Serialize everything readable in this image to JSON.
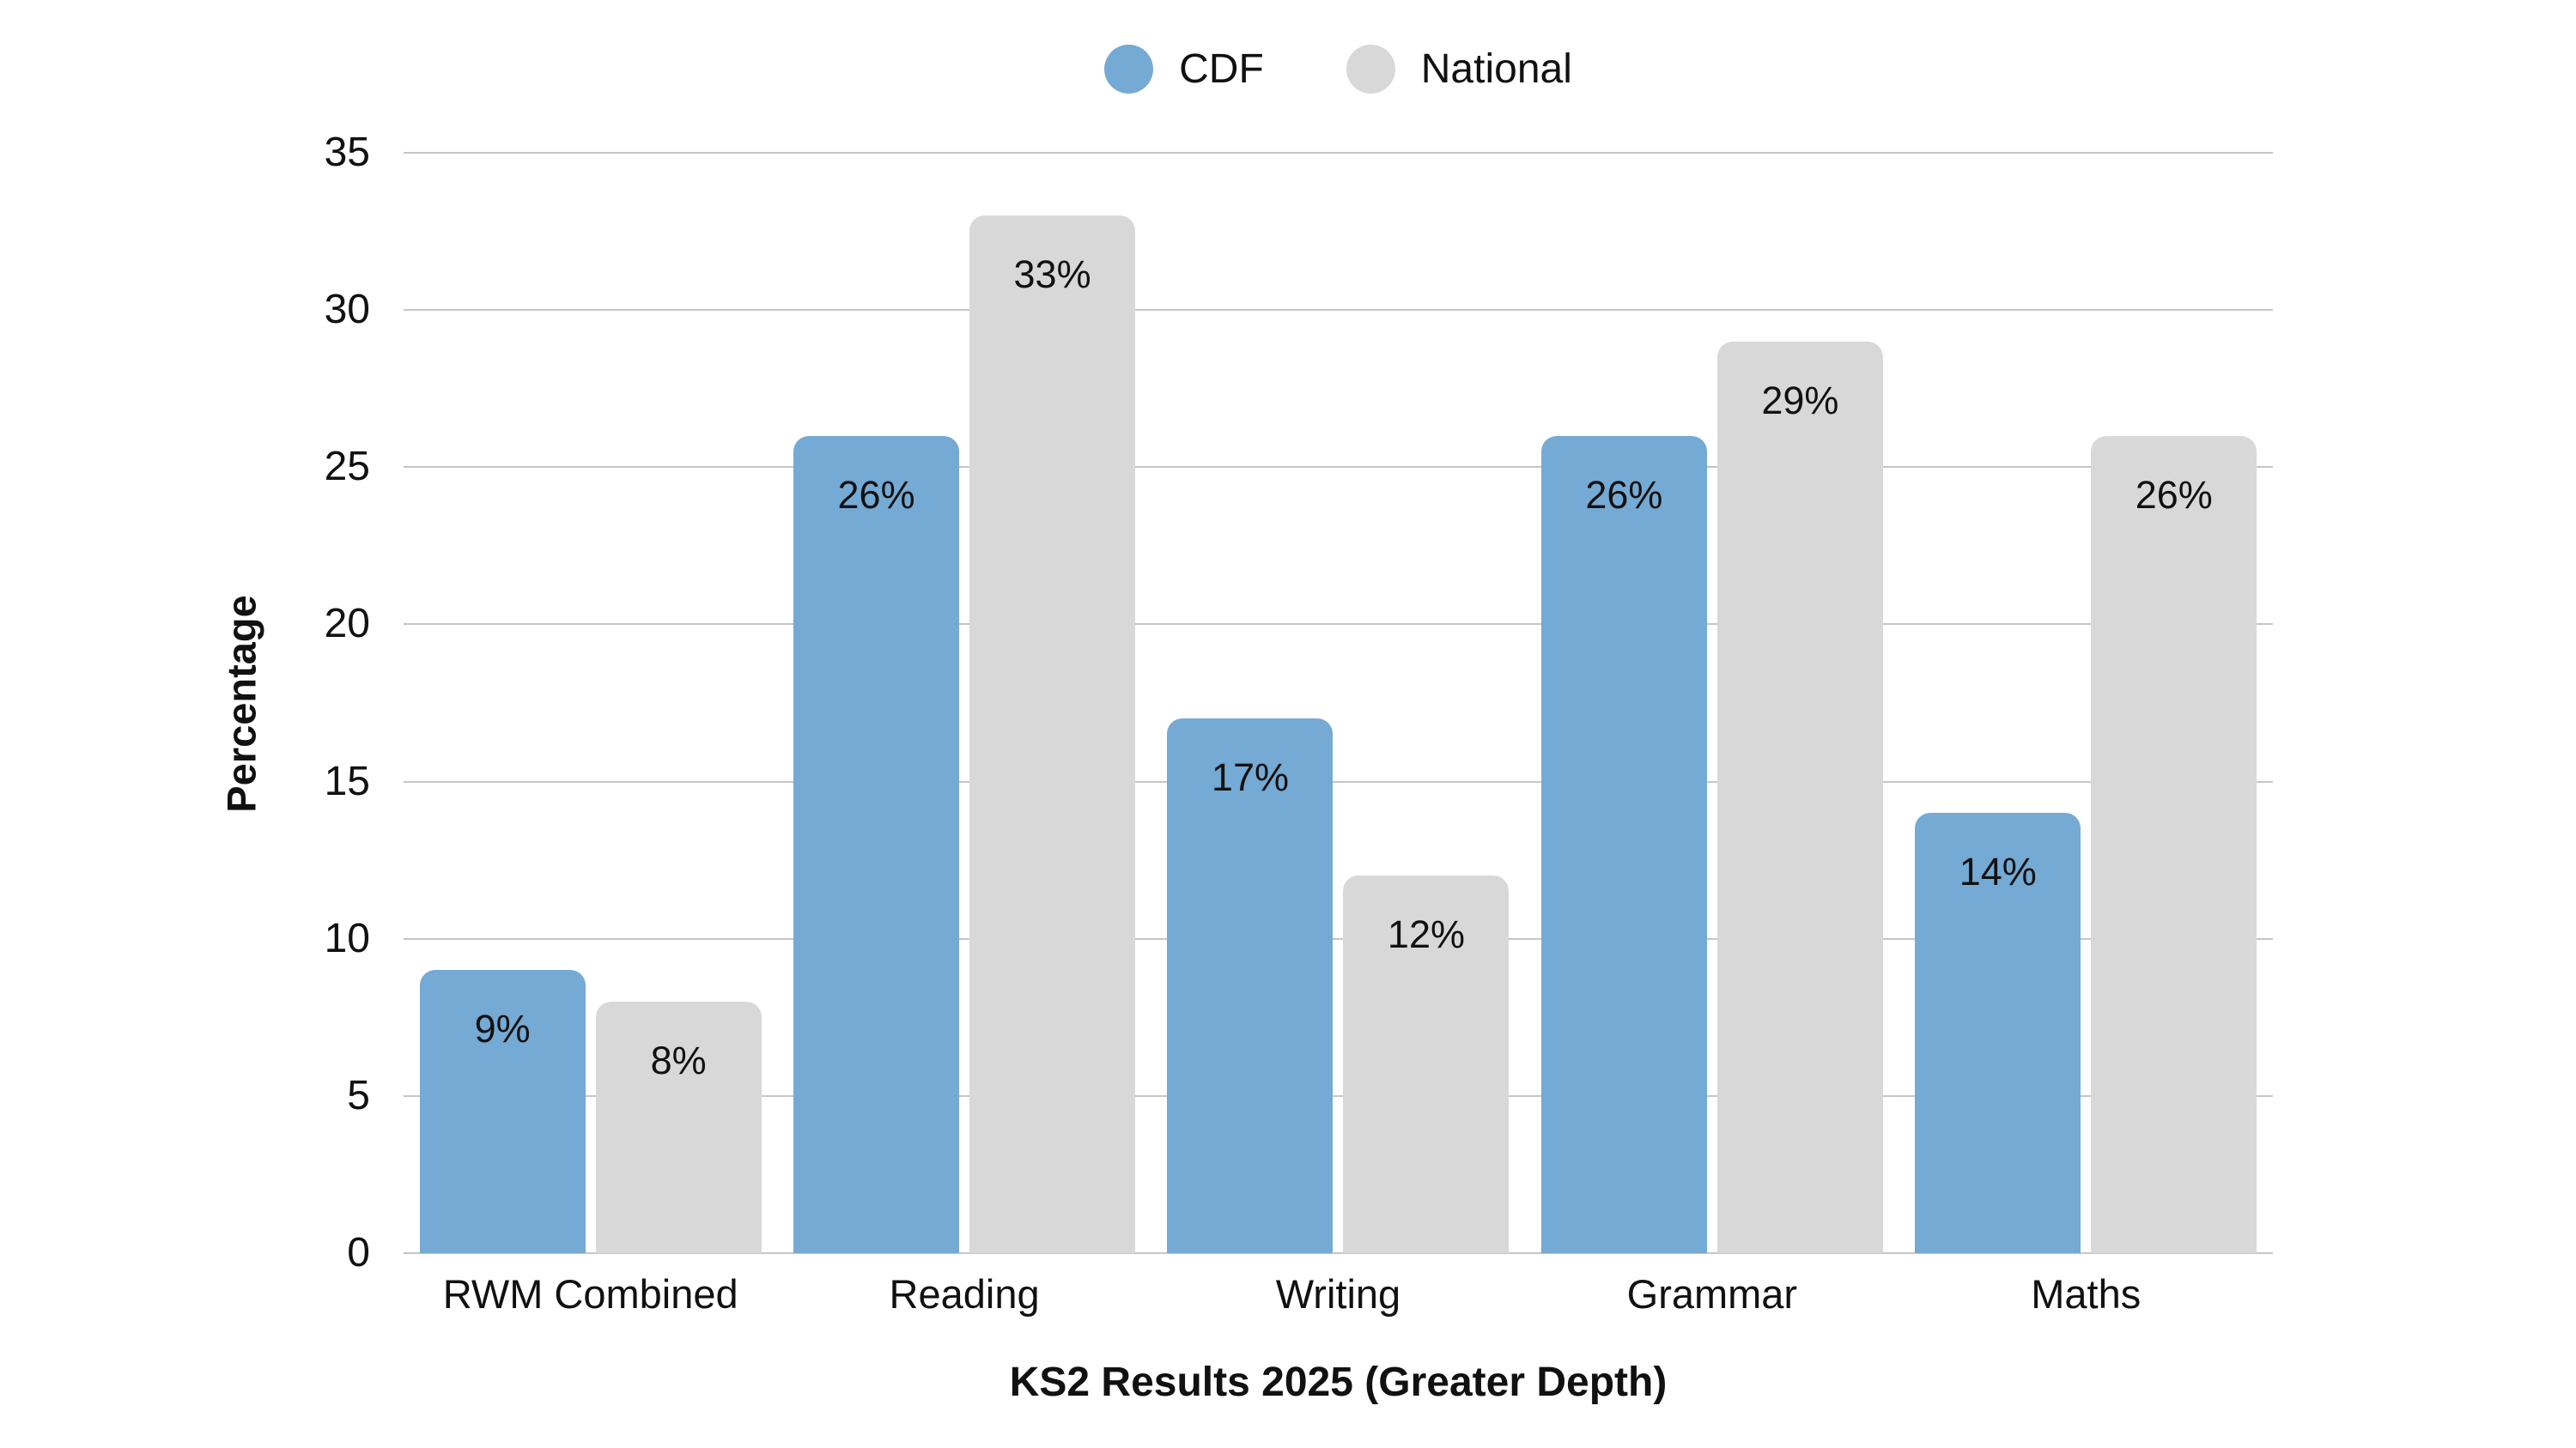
{
  "colors": {
    "background": "#FFFFFF",
    "grid": "#C6C6C6",
    "text": "#111111",
    "cdf_blue": "#74AAD4",
    "national_gray": "#D8D8D8"
  },
  "chart_data": {
    "type": "bar",
    "title": "",
    "categories": [
      "RWM Combined",
      "Reading",
      "Writing",
      "Grammar",
      "Maths"
    ],
    "series": [
      {
        "name": "CDF",
        "color": "#74AAD4",
        "values": [
          9,
          26,
          17,
          26,
          14
        ]
      },
      {
        "name": "National",
        "color": "#D8D8D8",
        "values": [
          8,
          33,
          12,
          29,
          26
        ]
      }
    ],
    "value_labels": [
      [
        "9%",
        "26%",
        "17%",
        "26%",
        "14%"
      ],
      [
        "8%",
        "33%",
        "12%",
        "29%",
        "26%"
      ]
    ],
    "value_suffix": "%",
    "xlabel": "KS2 Results 2025 (Greater Depth)",
    "ylabel": "Percentage",
    "ylim": [
      0,
      35
    ],
    "yticks": [
      0,
      5,
      10,
      15,
      20,
      25,
      30,
      35
    ],
    "grid": true,
    "legend_position": "top"
  }
}
